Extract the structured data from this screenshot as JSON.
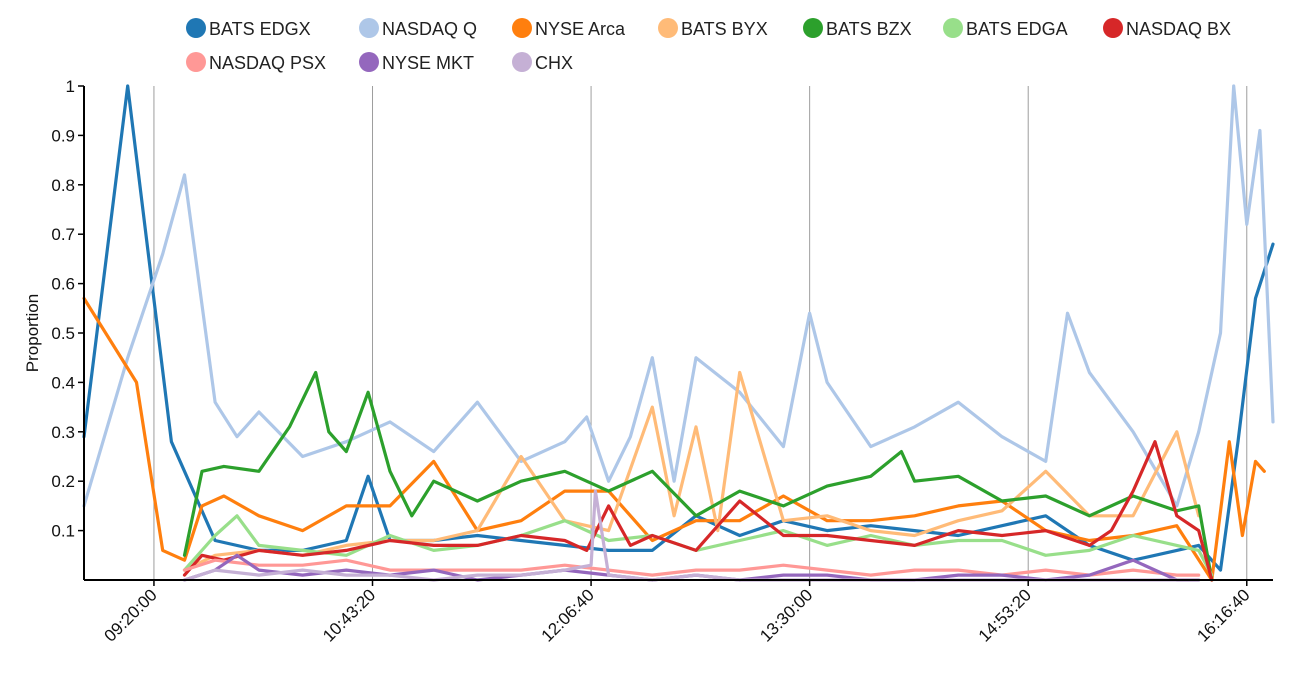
{
  "chart_data": {
    "type": "line",
    "xlabel": "",
    "ylabel": "Proportion",
    "ylim": [
      0,
      1
    ],
    "y_ticks": [
      "0.1",
      "0.2",
      "0.3",
      "0.4",
      "0.5",
      "0.6",
      "0.7",
      "0.8",
      "0.9",
      "1"
    ],
    "x_ticks": [
      "09:20:00",
      "10:43:20",
      "12:06:40",
      "13:30:00",
      "14:53:20",
      "16:16:40"
    ],
    "x_ticks_seconds": [
      33600,
      38600,
      43600,
      48600,
      53600,
      58600
    ],
    "grid": "vertical",
    "legend_position": "top",
    "series": [
      {
        "name": "BATS EDGX",
        "color": "#1f77b4",
        "x": [
          32000,
          33000,
          34000,
          35000,
          36000,
          37000,
          38000,
          38500,
          39000,
          40000,
          41000,
          42000,
          43000,
          44000,
          45000,
          46000,
          47000,
          48000,
          49000,
          50000,
          51000,
          52000,
          53000,
          54000,
          55000,
          56000,
          57000,
          57500,
          58000,
          58400,
          58800,
          59200
        ],
        "values": [
          0.29,
          1.0,
          0.28,
          0.08,
          0.06,
          0.06,
          0.08,
          0.21,
          0.08,
          0.08,
          0.09,
          0.08,
          0.07,
          0.06,
          0.06,
          0.13,
          0.09,
          0.12,
          0.1,
          0.11,
          0.1,
          0.09,
          0.11,
          0.13,
          0.07,
          0.04,
          0.06,
          0.07,
          0.02,
          0.28,
          0.57,
          0.68
        ]
      },
      {
        "name": "NASDAQ Q",
        "color": "#aec7e8",
        "x": [
          32000,
          33000,
          33800,
          34300,
          35000,
          35500,
          36000,
          37000,
          38000,
          39000,
          40000,
          41000,
          42000,
          43000,
          43500,
          44000,
          44500,
          45000,
          45500,
          46000,
          47000,
          48000,
          48600,
          49000,
          50000,
          51000,
          52000,
          53000,
          54000,
          54500,
          55000,
          56000,
          57000,
          57500,
          58000,
          58300,
          58600,
          58900,
          59200
        ],
        "values": [
          0.15,
          0.45,
          0.66,
          0.82,
          0.36,
          0.29,
          0.34,
          0.25,
          0.28,
          0.32,
          0.26,
          0.36,
          0.24,
          0.28,
          0.33,
          0.2,
          0.29,
          0.45,
          0.2,
          0.45,
          0.38,
          0.27,
          0.54,
          0.4,
          0.27,
          0.31,
          0.36,
          0.29,
          0.24,
          0.54,
          0.42,
          0.3,
          0.15,
          0.3,
          0.5,
          1.0,
          0.72,
          0.91,
          0.32
        ]
      },
      {
        "name": "NYSE Arca",
        "color": "#ff7f0e",
        "x": [
          32000,
          33200,
          33800,
          34300,
          34700,
          35200,
          36000,
          37000,
          38000,
          39000,
          40000,
          41000,
          42000,
          43000,
          44000,
          45000,
          46000,
          47000,
          48000,
          49000,
          50000,
          51000,
          52000,
          53000,
          54000,
          55000,
          56000,
          57000,
          57800,
          58200,
          58500,
          58800,
          59000
        ],
        "values": [
          0.57,
          0.4,
          0.06,
          0.04,
          0.15,
          0.17,
          0.13,
          0.1,
          0.15,
          0.15,
          0.24,
          0.1,
          0.12,
          0.18,
          0.18,
          0.08,
          0.12,
          0.12,
          0.17,
          0.12,
          0.12,
          0.13,
          0.15,
          0.16,
          0.1,
          0.08,
          0.09,
          0.11,
          0.0,
          0.28,
          0.09,
          0.24,
          0.22
        ]
      },
      {
        "name": "BATS BYX",
        "color": "#ffbb78",
        "x": [
          34300,
          35000,
          36000,
          37000,
          38000,
          39000,
          40000,
          41000,
          42000,
          43000,
          44000,
          45000,
          45500,
          46000,
          46500,
          47000,
          48000,
          49000,
          50000,
          51000,
          52000,
          53000,
          54000,
          55000,
          56000,
          57000,
          57500
        ],
        "values": [
          0.02,
          0.05,
          0.06,
          0.05,
          0.07,
          0.08,
          0.08,
          0.1,
          0.25,
          0.12,
          0.1,
          0.35,
          0.13,
          0.31,
          0.1,
          0.42,
          0.12,
          0.13,
          0.1,
          0.09,
          0.12,
          0.14,
          0.22,
          0.13,
          0.13,
          0.3,
          0.13
        ]
      },
      {
        "name": "BATS BZX",
        "color": "#2ca02c",
        "x": [
          34300,
          34700,
          35200,
          36000,
          36700,
          37300,
          37600,
          38000,
          38500,
          39000,
          39500,
          40000,
          41000,
          42000,
          43000,
          44000,
          45000,
          46000,
          47000,
          48000,
          49000,
          50000,
          50700,
          51000,
          52000,
          53000,
          54000,
          55000,
          56000,
          57000,
          57500,
          57800
        ],
        "values": [
          0.05,
          0.22,
          0.23,
          0.22,
          0.31,
          0.42,
          0.3,
          0.26,
          0.38,
          0.22,
          0.13,
          0.2,
          0.16,
          0.2,
          0.22,
          0.18,
          0.22,
          0.13,
          0.18,
          0.15,
          0.19,
          0.21,
          0.26,
          0.2,
          0.21,
          0.16,
          0.17,
          0.13,
          0.17,
          0.14,
          0.15,
          0.0
        ]
      },
      {
        "name": "BATS EDGA",
        "color": "#98df8a",
        "x": [
          34300,
          35000,
          35500,
          36000,
          37000,
          38000,
          39000,
          40000,
          41000,
          42000,
          43000,
          44000,
          45000,
          46000,
          47000,
          48000,
          49000,
          50000,
          51000,
          52000,
          53000,
          54000,
          55000,
          56000,
          57000,
          57500,
          57800
        ],
        "values": [
          0.02,
          0.09,
          0.13,
          0.07,
          0.06,
          0.05,
          0.09,
          0.06,
          0.07,
          0.09,
          0.12,
          0.08,
          0.09,
          0.06,
          0.08,
          0.1,
          0.07,
          0.09,
          0.07,
          0.08,
          0.08,
          0.05,
          0.06,
          0.09,
          0.07,
          0.06,
          0.01
        ]
      },
      {
        "name": "NASDAQ BX",
        "color": "#d62728",
        "x": [
          34300,
          34700,
          35200,
          36000,
          37000,
          38000,
          39000,
          40000,
          41000,
          42000,
          43000,
          43500,
          44000,
          44500,
          45000,
          46000,
          47000,
          48000,
          49000,
          50000,
          51000,
          52000,
          53000,
          54000,
          55000,
          55500,
          56000,
          56500,
          57000,
          57500,
          57800
        ],
        "values": [
          0.01,
          0.05,
          0.04,
          0.06,
          0.05,
          0.06,
          0.08,
          0.07,
          0.07,
          0.09,
          0.08,
          0.06,
          0.15,
          0.07,
          0.09,
          0.06,
          0.16,
          0.09,
          0.09,
          0.08,
          0.07,
          0.1,
          0.09,
          0.1,
          0.07,
          0.1,
          0.18,
          0.28,
          0.13,
          0.1,
          0.0
        ]
      },
      {
        "name": "NASDAQ PSX",
        "color": "#ff9896",
        "x": [
          34300,
          35000,
          36000,
          37000,
          38000,
          39000,
          40000,
          41000,
          42000,
          43000,
          44000,
          45000,
          46000,
          47000,
          48000,
          49000,
          50000,
          51000,
          52000,
          53000,
          54000,
          55000,
          56000,
          57000,
          57500
        ],
        "values": [
          0.02,
          0.04,
          0.03,
          0.03,
          0.04,
          0.02,
          0.02,
          0.02,
          0.02,
          0.03,
          0.02,
          0.01,
          0.02,
          0.02,
          0.03,
          0.02,
          0.01,
          0.02,
          0.02,
          0.01,
          0.02,
          0.01,
          0.02,
          0.01,
          0.01
        ]
      },
      {
        "name": "NYSE MKT",
        "color": "#9467bd",
        "x": [
          34300,
          35000,
          35500,
          36000,
          37000,
          38000,
          39000,
          40000,
          41000,
          42000,
          43000,
          44000,
          45000,
          46000,
          47000,
          48000,
          49000,
          50000,
          51000,
          52000,
          53000,
          54000,
          55000,
          56000,
          57000,
          57500
        ],
        "values": [
          0.0,
          0.02,
          0.05,
          0.02,
          0.01,
          0.02,
          0.01,
          0.02,
          0.0,
          0.01,
          0.02,
          0.01,
          0.0,
          0.01,
          0.0,
          0.01,
          0.01,
          0.0,
          0.0,
          0.01,
          0.01,
          0.0,
          0.01,
          0.04,
          0.0,
          0.0
        ]
      },
      {
        "name": "CHX",
        "color": "#c5b0d5",
        "x": [
          34300,
          35000,
          36000,
          37000,
          38000,
          39000,
          40000,
          41000,
          42000,
          43000,
          43600,
          43700,
          44000,
          45000,
          46000,
          47000,
          48000,
          49000,
          50000,
          51000,
          52000,
          53000,
          54000,
          55000,
          56000,
          57000,
          57500
        ],
        "values": [
          0.0,
          0.02,
          0.01,
          0.02,
          0.01,
          0.01,
          0.0,
          0.01,
          0.01,
          0.02,
          0.03,
          0.18,
          0.01,
          0.0,
          0.01,
          0.0,
          0.0,
          0.0,
          0.0,
          0.0,
          0.0,
          0.0,
          0.0,
          0.0,
          0.0,
          0.0,
          0.0
        ]
      }
    ]
  }
}
